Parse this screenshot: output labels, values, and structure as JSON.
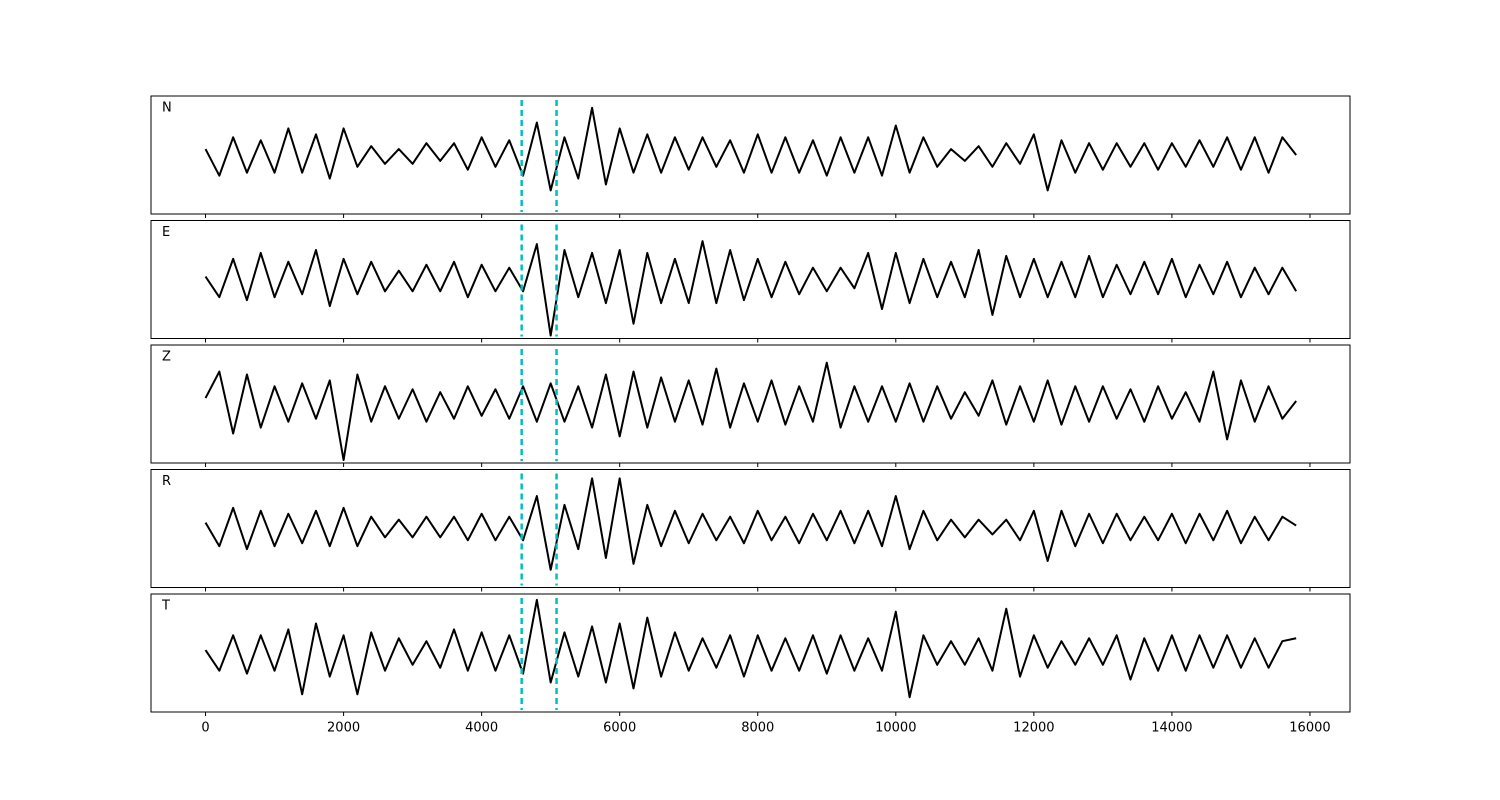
{
  "chart_data": [
    {
      "type": "line",
      "label": "N",
      "color": "#000000",
      "xlim": [
        -790,
        16580
      ],
      "ylim": [
        -1,
        1
      ],
      "vlines": [
        4580,
        5085
      ],
      "vline_color": "#00bfbf",
      "x": [
        0,
        200,
        400,
        600,
        800,
        1000,
        1200,
        1400,
        1600,
        1800,
        2000,
        2200,
        2400,
        2600,
        2800,
        3000,
        3200,
        3400,
        3600,
        3800,
        4000,
        4200,
        4400,
        4600,
        4800,
        5000,
        5200,
        5400,
        5600,
        5800,
        6000,
        6200,
        6400,
        6600,
        6800,
        7000,
        7200,
        7400,
        7600,
        7800,
        8000,
        8200,
        8400,
        8600,
        8800,
        9000,
        9200,
        9400,
        9600,
        9800,
        10000,
        10200,
        10400,
        10600,
        10800,
        11000,
        11200,
        11400,
        11600,
        11800,
        12000,
        12200,
        12400,
        12600,
        12800,
        13000,
        13200,
        13400,
        13600,
        13800,
        14000,
        14200,
        14400,
        14600,
        14800,
        15000,
        15200,
        15400,
        15600,
        15800
      ],
      "values": [
        0.1,
        -0.35,
        0.3,
        -0.3,
        0.25,
        -0.3,
        0.45,
        -0.3,
        0.35,
        -0.4,
        0.45,
        -0.2,
        0.15,
        -0.15,
        0.1,
        -0.15,
        0.2,
        -0.1,
        0.2,
        -0.25,
        0.3,
        -0.2,
        0.25,
        -0.35,
        0.55,
        -0.6,
        0.3,
        -0.4,
        0.8,
        -0.5,
        0.45,
        -0.3,
        0.35,
        -0.3,
        0.3,
        -0.25,
        0.3,
        -0.2,
        0.25,
        -0.3,
        0.35,
        -0.3,
        0.3,
        -0.3,
        0.25,
        -0.35,
        0.3,
        -0.3,
        0.3,
        -0.35,
        0.5,
        -0.3,
        0.3,
        -0.2,
        0.1,
        -0.1,
        0.15,
        -0.2,
        0.2,
        -0.15,
        0.35,
        -0.6,
        0.25,
        -0.3,
        0.2,
        -0.25,
        0.2,
        -0.2,
        0.2,
        -0.25,
        0.2,
        -0.2,
        0.25,
        -0.2,
        0.3,
        -0.25,
        0.3,
        -0.3,
        0.3,
        0.0
      ]
    },
    {
      "type": "line",
      "label": "E",
      "color": "#000000",
      "xlim": [
        -790,
        16580
      ],
      "ylim": [
        -1,
        1
      ],
      "vlines": [
        4580,
        5085
      ],
      "vline_color": "#00bfbf",
      "x": [
        0,
        200,
        400,
        600,
        800,
        1000,
        1200,
        1400,
        1600,
        1800,
        2000,
        2200,
        2400,
        2600,
        2800,
        3000,
        3200,
        3400,
        3600,
        3800,
        4000,
        4200,
        4400,
        4600,
        4800,
        5000,
        5200,
        5400,
        5600,
        5800,
        6000,
        6200,
        6400,
        6600,
        6800,
        7000,
        7200,
        7400,
        7600,
        7800,
        8000,
        8200,
        8400,
        8600,
        8800,
        9000,
        9200,
        9400,
        9600,
        9800,
        10000,
        10200,
        10400,
        10600,
        10800,
        11000,
        11200,
        11400,
        11600,
        11800,
        12000,
        12200,
        12400,
        12600,
        12800,
        13000,
        13200,
        13400,
        13600,
        13800,
        14000,
        14200,
        14400,
        14600,
        14800,
        15000,
        15200,
        15400,
        15600,
        15800
      ],
      "values": [
        0.05,
        -0.3,
        0.35,
        -0.35,
        0.45,
        -0.3,
        0.3,
        -0.25,
        0.5,
        -0.45,
        0.35,
        -0.25,
        0.3,
        -0.2,
        0.15,
        -0.2,
        0.25,
        -0.2,
        0.3,
        -0.3,
        0.25,
        -0.2,
        0.2,
        -0.2,
        0.6,
        -0.95,
        0.5,
        -0.3,
        0.45,
        -0.4,
        0.5,
        -0.75,
        0.45,
        -0.4,
        0.35,
        -0.4,
        0.65,
        -0.4,
        0.5,
        -0.35,
        0.35,
        -0.3,
        0.3,
        -0.25,
        0.2,
        -0.2,
        0.2,
        -0.15,
        0.45,
        -0.5,
        0.45,
        -0.4,
        0.35,
        -0.3,
        0.3,
        -0.3,
        0.5,
        -0.6,
        0.4,
        -0.3,
        0.35,
        -0.3,
        0.3,
        -0.3,
        0.4,
        -0.3,
        0.25,
        -0.25,
        0.3,
        -0.25,
        0.35,
        -0.3,
        0.25,
        -0.25,
        0.3,
        -0.3,
        0.2,
        -0.25,
        0.2,
        -0.2
      ]
    },
    {
      "type": "line",
      "label": "Z",
      "color": "#000000",
      "xlim": [
        -790,
        16580
      ],
      "ylim": [
        -1,
        1
      ],
      "vlines": [
        4580,
        5085
      ],
      "vline_color": "#00bfbf",
      "x": [
        0,
        200,
        400,
        600,
        800,
        1000,
        1200,
        1400,
        1600,
        1800,
        2000,
        2200,
        2400,
        2600,
        2800,
        3000,
        3200,
        3400,
        3600,
        3800,
        4000,
        4200,
        4400,
        4600,
        4800,
        5000,
        5200,
        5400,
        5600,
        5800,
        6000,
        6200,
        6400,
        6600,
        6800,
        7000,
        7200,
        7400,
        7600,
        7800,
        8000,
        8200,
        8400,
        8600,
        8800,
        9000,
        9200,
        9400,
        9600,
        9800,
        10000,
        10200,
        10400,
        10600,
        10800,
        11000,
        11200,
        11400,
        11600,
        11800,
        12000,
        12200,
        12400,
        12600,
        12800,
        13000,
        13200,
        13400,
        13600,
        13800,
        14000,
        14200,
        14400,
        14600,
        14800,
        15000,
        15200,
        15400,
        15600,
        15800
      ],
      "values": [
        0.1,
        0.55,
        -0.5,
        0.5,
        -0.4,
        0.3,
        -0.3,
        0.35,
        -0.25,
        0.4,
        -0.95,
        0.5,
        -0.3,
        0.3,
        -0.25,
        0.25,
        -0.3,
        0.2,
        -0.25,
        0.3,
        -0.2,
        0.25,
        -0.25,
        0.3,
        -0.3,
        0.35,
        -0.3,
        0.3,
        -0.4,
        0.5,
        -0.55,
        0.55,
        -0.4,
        0.45,
        -0.3,
        0.4,
        -0.35,
        0.6,
        -0.4,
        0.35,
        -0.3,
        0.4,
        -0.35,
        0.3,
        -0.3,
        0.7,
        -0.4,
        0.3,
        -0.3,
        0.3,
        -0.3,
        0.35,
        -0.3,
        0.3,
        -0.25,
        0.2,
        -0.2,
        0.4,
        -0.35,
        0.3,
        -0.3,
        0.4,
        -0.35,
        0.3,
        -0.3,
        0.3,
        -0.25,
        0.25,
        -0.3,
        0.3,
        -0.25,
        0.2,
        -0.3,
        0.55,
        -0.6,
        0.4,
        -0.3,
        0.3,
        -0.25,
        0.05
      ]
    },
    {
      "type": "line",
      "label": "R",
      "color": "#000000",
      "xlim": [
        -790,
        16580
      ],
      "ylim": [
        -1,
        1
      ],
      "vlines": [
        4580,
        5085
      ],
      "vline_color": "#00bfbf",
      "x": [
        0,
        200,
        400,
        600,
        800,
        1000,
        1200,
        1400,
        1600,
        1800,
        2000,
        2200,
        2400,
        2600,
        2800,
        3000,
        3200,
        3400,
        3600,
        3800,
        4000,
        4200,
        4400,
        4600,
        4800,
        5000,
        5200,
        5400,
        5600,
        5800,
        6000,
        6200,
        6400,
        6600,
        6800,
        7000,
        7200,
        7400,
        7600,
        7800,
        8000,
        8200,
        8400,
        8600,
        8800,
        9000,
        9200,
        9400,
        9600,
        9800,
        10000,
        10200,
        10400,
        10600,
        10800,
        11000,
        11200,
        11400,
        11600,
        11800,
        12000,
        12200,
        12400,
        12600,
        12800,
        13000,
        13200,
        13400,
        13600,
        13800,
        14000,
        14200,
        14400,
        14600,
        14800,
        15000,
        15200,
        15400,
        15600,
        15800
      ],
      "values": [
        0.1,
        -0.3,
        0.35,
        -0.35,
        0.3,
        -0.3,
        0.25,
        -0.25,
        0.3,
        -0.3,
        0.35,
        -0.3,
        0.2,
        -0.15,
        0.15,
        -0.15,
        0.2,
        -0.15,
        0.2,
        -0.2,
        0.25,
        -0.2,
        0.2,
        -0.2,
        0.55,
        -0.7,
        0.4,
        -0.35,
        0.85,
        -0.5,
        0.85,
        -0.6,
        0.4,
        -0.3,
        0.3,
        -0.25,
        0.25,
        -0.2,
        0.2,
        -0.25,
        0.3,
        -0.2,
        0.2,
        -0.25,
        0.25,
        -0.2,
        0.3,
        -0.25,
        0.3,
        -0.3,
        0.55,
        -0.35,
        0.3,
        -0.2,
        0.15,
        -0.15,
        0.15,
        -0.1,
        0.15,
        -0.2,
        0.3,
        -0.55,
        0.3,
        -0.3,
        0.25,
        -0.25,
        0.25,
        -0.2,
        0.2,
        -0.2,
        0.25,
        -0.25,
        0.25,
        -0.2,
        0.3,
        -0.25,
        0.2,
        -0.2,
        0.2,
        0.05
      ]
    },
    {
      "type": "line",
      "label": "T",
      "color": "#000000",
      "xlim": [
        -790,
        16580
      ],
      "ylim": [
        -1,
        1
      ],
      "vlines": [
        4580,
        5085
      ],
      "vline_color": "#00bfbf",
      "xticks": [
        0,
        2000,
        4000,
        6000,
        8000,
        10000,
        12000,
        14000,
        16000
      ],
      "x": [
        0,
        200,
        400,
        600,
        800,
        1000,
        1200,
        1400,
        1600,
        1800,
        2000,
        2200,
        2400,
        2600,
        2800,
        3000,
        3200,
        3400,
        3600,
        3800,
        4000,
        4200,
        4400,
        4600,
        4800,
        5000,
        5200,
        5400,
        5600,
        5800,
        6000,
        6200,
        6400,
        6600,
        6800,
        7000,
        7200,
        7400,
        7600,
        7800,
        8000,
        8200,
        8400,
        8600,
        8800,
        9000,
        9200,
        9400,
        9600,
        9800,
        10000,
        10200,
        10400,
        10600,
        10800,
        11000,
        11200,
        11400,
        11600,
        11800,
        12000,
        12200,
        12400,
        12600,
        12800,
        13000,
        13200,
        13400,
        13600,
        13800,
        14000,
        14200,
        14400,
        14600,
        14800,
        15000,
        15200,
        15400,
        15600,
        15800
      ],
      "values": [
        0.05,
        -0.3,
        0.3,
        -0.35,
        0.3,
        -0.3,
        0.4,
        -0.7,
        0.5,
        -0.4,
        0.3,
        -0.7,
        0.35,
        -0.3,
        0.25,
        -0.2,
        0.2,
        -0.25,
        0.4,
        -0.3,
        0.35,
        -0.3,
        0.3,
        -0.35,
        0.9,
        -0.5,
        0.35,
        -0.4,
        0.45,
        -0.5,
        0.5,
        -0.6,
        0.6,
        -0.4,
        0.35,
        -0.3,
        0.25,
        -0.25,
        0.3,
        -0.4,
        0.3,
        -0.3,
        0.25,
        -0.3,
        0.3,
        -0.35,
        0.3,
        -0.3,
        0.25,
        -0.3,
        0.7,
        -0.75,
        0.3,
        -0.2,
        0.2,
        -0.2,
        0.25,
        -0.3,
        0.75,
        -0.4,
        0.3,
        -0.25,
        0.2,
        -0.2,
        0.25,
        -0.2,
        0.3,
        -0.45,
        0.25,
        -0.3,
        0.3,
        -0.3,
        0.3,
        -0.25,
        0.3,
        -0.25,
        0.25,
        -0.25,
        0.2,
        0.25
      ]
    }
  ]
}
